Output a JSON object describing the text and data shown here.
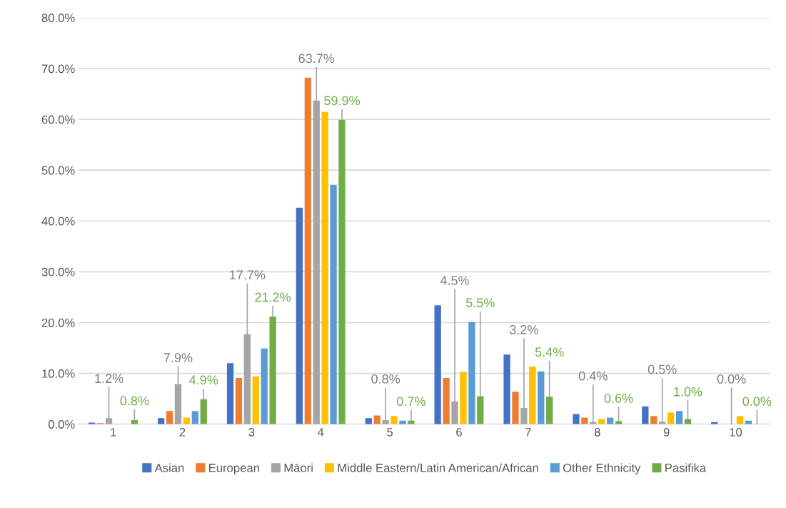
{
  "chart_data": {
    "type": "bar",
    "categories": [
      "1",
      "2",
      "3",
      "4",
      "5",
      "6",
      "7",
      "8",
      "9",
      "10"
    ],
    "series": [
      {
        "name": "Asian",
        "color": "#4472c4",
        "values": [
          0.3,
          1.2,
          12.0,
          42.6,
          1.2,
          23.4,
          13.7,
          2.0,
          3.5,
          0.4
        ]
      },
      {
        "name": "European",
        "color": "#ed7d31",
        "values": [
          0.2,
          2.6,
          9.1,
          68.2,
          1.7,
          9.1,
          6.4,
          1.3,
          1.6,
          0.0
        ]
      },
      {
        "name": "Māori",
        "color": "#a5a5a5",
        "values": [
          1.2,
          7.9,
          17.7,
          63.7,
          0.8,
          4.5,
          3.2,
          0.4,
          0.5,
          0.0
        ],
        "value_labels": [
          "1.2%",
          "7.9%",
          "17.7%",
          "63.7%",
          "0.8%",
          "4.5%",
          "3.2%",
          "0.4%",
          "0.5%",
          "0.0%"
        ]
      },
      {
        "name": "Middle Eastern/Latin American/African",
        "color": "#ffc000",
        "values": [
          0.0,
          1.3,
          9.4,
          61.5,
          1.6,
          10.3,
          11.3,
          1.0,
          2.3,
          1.6
        ]
      },
      {
        "name": "Other Ethnicity",
        "color": "#5b9bd5",
        "values": [
          0.0,
          2.6,
          14.9,
          47.1,
          0.7,
          20.1,
          10.4,
          1.3,
          2.6,
          0.7
        ]
      },
      {
        "name": "Pasifika",
        "color": "#70ad47",
        "values": [
          0.8,
          4.9,
          21.2,
          59.9,
          0.7,
          5.5,
          5.4,
          0.6,
          1.0,
          0.0
        ],
        "value_labels": [
          "0.8%",
          "4.9%",
          "21.2%",
          "59.9%",
          "0.7%",
          "5.5%",
          "5.4%",
          "0.6%",
          "1.0%",
          "0.0%"
        ]
      }
    ],
    "ylim": [
      0,
      80
    ],
    "yticks": [
      {
        "value": 0,
        "label": "0.0%"
      },
      {
        "value": 10,
        "label": "10.0%"
      },
      {
        "value": 20,
        "label": "20.0%"
      },
      {
        "value": 30,
        "label": "30.0%"
      },
      {
        "value": 40,
        "label": "40.0%"
      },
      {
        "value": 50,
        "label": "50.0%"
      },
      {
        "value": 60,
        "label": "60.0%"
      },
      {
        "value": 70,
        "label": "70.0%"
      },
      {
        "value": 80,
        "label": "80.0%"
      }
    ],
    "grid": "y",
    "legend": "bottom"
  }
}
